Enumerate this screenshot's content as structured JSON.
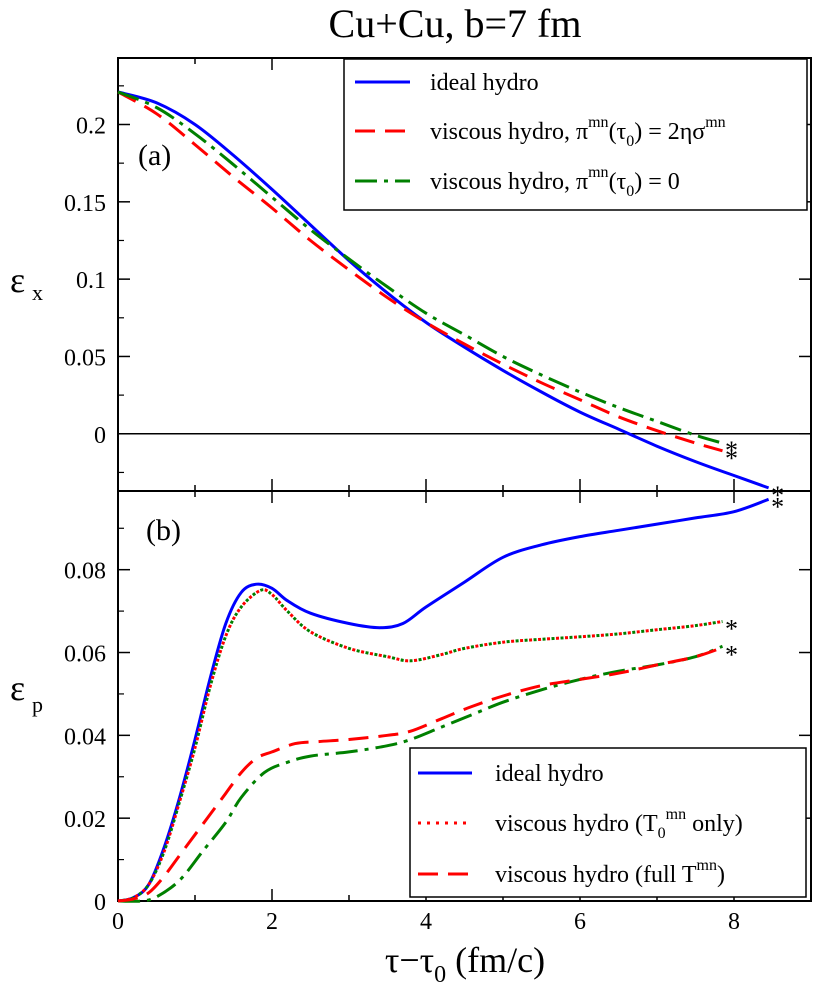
{
  "title": "Cu+Cu, b=7 fm",
  "xlabel_main": "τ−τ",
  "xlabel_sub": "0",
  "xlabel_tail": " (fm/c)",
  "x_ticks": [
    "0",
    "2",
    "4",
    "6",
    "8"
  ],
  "colors": {
    "ideal": "#0000ff",
    "viscous_a": "#ff0000",
    "viscous_b": "#008000"
  },
  "chart_data": [
    {
      "type": "line",
      "panel_label": "(a)",
      "ylabel_main": "ε",
      "ylabel_sub": "x",
      "xlim": [
        0,
        9
      ],
      "ylim": [
        -0.037,
        0.243
      ],
      "y_tick_labels": [
        "0",
        "0.05",
        "0.1",
        "0.15",
        "0.2"
      ],
      "y_tick_values": [
        0,
        0.05,
        0.1,
        0.15,
        0.2
      ],
      "zero_line": true,
      "legend": {
        "ideal": "ideal hydro",
        "red_pre": "viscous hydro, π",
        "red_sup1": "mn",
        "red_mid": "(τ",
        "red_sub": "0",
        "red_post": ") = 2ησ",
        "red_sup2": "mn",
        "green_pre": "viscous hydro, π",
        "green_sup": "mn",
        "green_mid": "(τ",
        "green_sub": "0",
        "green_post": ") = 0"
      },
      "end_marker": "*",
      "series": [
        {
          "name": "ideal hydro",
          "color_key": "ideal",
          "dash": "",
          "end_star": true,
          "points": [
            [
              0,
              0.221
            ],
            [
              0.5,
              0.214
            ],
            [
              1,
              0.2
            ],
            [
              1.5,
              0.18
            ],
            [
              2,
              0.158
            ],
            [
              2.5,
              0.135
            ],
            [
              3,
              0.112
            ],
            [
              3.5,
              0.091
            ],
            [
              4,
              0.072
            ],
            [
              4.5,
              0.056
            ],
            [
              5,
              0.041
            ],
            [
              5.5,
              0.027
            ],
            [
              6,
              0.014
            ],
            [
              6.5,
              0.003
            ],
            [
              7,
              -0.008
            ],
            [
              7.5,
              -0.018
            ],
            [
              8,
              -0.027
            ],
            [
              8.45,
              -0.035
            ]
          ]
        },
        {
          "name": "viscous hydro, π^mn(τ0) = 2ησ^mn",
          "color_key": "viscous_a",
          "dash": "20,10",
          "end_star": true,
          "points": [
            [
              0,
              0.221
            ],
            [
              0.5,
              0.207
            ],
            [
              1,
              0.187
            ],
            [
              1.5,
              0.166
            ],
            [
              2,
              0.146
            ],
            [
              2.5,
              0.125
            ],
            [
              3,
              0.106
            ],
            [
              3.5,
              0.088
            ],
            [
              4,
              0.072
            ],
            [
              4.5,
              0.058
            ],
            [
              5,
              0.045
            ],
            [
              5.5,
              0.033
            ],
            [
              6,
              0.022
            ],
            [
              6.5,
              0.011
            ],
            [
              7,
              0.002
            ],
            [
              7.5,
              -0.006
            ],
            [
              7.85,
              -0.011
            ]
          ]
        },
        {
          "name": "viscous hydro, π^mn(τ0) = 0",
          "color_key": "viscous_b",
          "dash": "22,7,4,7",
          "end_star": true,
          "points": [
            [
              0,
              0.221
            ],
            [
              0.5,
              0.211
            ],
            [
              1,
              0.194
            ],
            [
              1.5,
              0.174
            ],
            [
              2,
              0.153
            ],
            [
              2.5,
              0.132
            ],
            [
              3,
              0.113
            ],
            [
              3.5,
              0.095
            ],
            [
              4,
              0.078
            ],
            [
              4.5,
              0.064
            ],
            [
              5,
              0.05
            ],
            [
              5.5,
              0.038
            ],
            [
              6,
              0.027
            ],
            [
              6.5,
              0.017
            ],
            [
              7,
              0.008
            ],
            [
              7.5,
              -0.001
            ],
            [
              7.85,
              -0.006
            ]
          ]
        }
      ]
    },
    {
      "type": "line",
      "panel_label": "(b)",
      "ylabel_main": "ε",
      "ylabel_sub": "p",
      "xlim": [
        0,
        9
      ],
      "ylim": [
        0,
        0.099
      ],
      "y_tick_labels": [
        "0",
        "0.02",
        "0.04",
        "0.06",
        "0.08"
      ],
      "y_tick_values": [
        0,
        0.02,
        0.04,
        0.06,
        0.08
      ],
      "zero_line": false,
      "legend": {
        "ideal": "ideal hydro",
        "dot_pre": "viscous hydro (T",
        "dot_sub": "0",
        "dot_sup": "mn",
        "dot_post": " only)",
        "dash_pre": "viscous hydro (full T",
        "dash_sup": "mn",
        "dash_post": ")"
      },
      "end_marker": "*",
      "series": [
        {
          "name": "ideal hydro",
          "color_key": "ideal",
          "dash": "",
          "end_star": true,
          "points": [
            [
              0,
              0
            ],
            [
              0.2,
              0.0008
            ],
            [
              0.4,
              0.004
            ],
            [
              0.6,
              0.013
            ],
            [
              0.8,
              0.025
            ],
            [
              1,
              0.039
            ],
            [
              1.2,
              0.054
            ],
            [
              1.4,
              0.067
            ],
            [
              1.6,
              0.0745
            ],
            [
              1.8,
              0.0765
            ],
            [
              2,
              0.0755
            ],
            [
              2.2,
              0.0725
            ],
            [
              2.5,
              0.0695
            ],
            [
              3,
              0.067
            ],
            [
              3.4,
              0.066
            ],
            [
              3.7,
              0.067
            ],
            [
              4,
              0.071
            ],
            [
              4.5,
              0.077
            ],
            [
              5,
              0.083
            ],
            [
              5.5,
              0.086
            ],
            [
              6,
              0.088
            ],
            [
              6.5,
              0.0895
            ],
            [
              7,
              0.091
            ],
            [
              7.5,
              0.0925
            ],
            [
              8,
              0.094
            ],
            [
              8.45,
              0.097
            ]
          ]
        },
        {
          "name": "viscous hydro (T0^mn only)",
          "color_key": "viscous_a",
          "dash": "3,6",
          "end_star": true,
          "points": [
            [
              0,
              0
            ],
            [
              0.2,
              0.0008
            ],
            [
              0.4,
              0.004
            ],
            [
              0.6,
              0.012
            ],
            [
              0.8,
              0.024
            ],
            [
              1,
              0.037
            ],
            [
              1.2,
              0.052
            ],
            [
              1.4,
              0.064
            ],
            [
              1.6,
              0.071
            ],
            [
              1.85,
              0.075
            ],
            [
              2,
              0.074
            ],
            [
              2.2,
              0.07
            ],
            [
              2.5,
              0.065
            ],
            [
              3,
              0.061
            ],
            [
              3.5,
              0.059
            ],
            [
              3.8,
              0.058
            ],
            [
              4.2,
              0.0595
            ],
            [
              4.5,
              0.061
            ],
            [
              5,
              0.0625
            ],
            [
              5.5,
              0.0632
            ],
            [
              6,
              0.0638
            ],
            [
              6.5,
              0.0645
            ],
            [
              7,
              0.0655
            ],
            [
              7.5,
              0.0665
            ],
            [
              7.85,
              0.0675
            ]
          ]
        },
        {
          "name": "viscous hydro (T0^mn only) overlay",
          "color_key": "viscous_b",
          "dash": "3,6",
          "dashoffset": 4.5,
          "end_star": false,
          "points": [
            [
              0,
              0
            ],
            [
              0.2,
              0.0008
            ],
            [
              0.4,
              0.004
            ],
            [
              0.6,
              0.012
            ],
            [
              0.8,
              0.024
            ],
            [
              1,
              0.037
            ],
            [
              1.2,
              0.052
            ],
            [
              1.4,
              0.064
            ],
            [
              1.6,
              0.071
            ],
            [
              1.85,
              0.075
            ],
            [
              2,
              0.074
            ],
            [
              2.2,
              0.07
            ],
            [
              2.5,
              0.065
            ],
            [
              3,
              0.061
            ],
            [
              3.5,
              0.059
            ],
            [
              3.8,
              0.058
            ],
            [
              4.2,
              0.0595
            ],
            [
              4.5,
              0.061
            ],
            [
              5,
              0.0625
            ],
            [
              5.5,
              0.0632
            ],
            [
              6,
              0.0638
            ],
            [
              6.5,
              0.0645
            ],
            [
              7,
              0.0655
            ],
            [
              7.5,
              0.0665
            ],
            [
              7.85,
              0.0675
            ]
          ]
        },
        {
          "name": "viscous hydro (full T^mn) dash-dot",
          "color_key": "viscous_b",
          "dash": "22,7,4,7",
          "end_star": false,
          "points": [
            [
              0,
              0
            ],
            [
              0.3,
              0
            ],
            [
              0.5,
              0.001
            ],
            [
              0.8,
              0.005
            ],
            [
              1.1,
              0.012
            ],
            [
              1.4,
              0.019
            ],
            [
              1.6,
              0.025
            ],
            [
              1.9,
              0.031
            ],
            [
              2.2,
              0.0335
            ],
            [
              2.5,
              0.035
            ],
            [
              3,
              0.036
            ],
            [
              3.5,
              0.0375
            ],
            [
              3.8,
              0.039
            ],
            [
              4.2,
              0.042
            ],
            [
              4.6,
              0.045
            ],
            [
              5,
              0.048
            ],
            [
              5.5,
              0.051
            ],
            [
              6,
              0.0535
            ],
            [
              6.5,
              0.0555
            ],
            [
              7,
              0.057
            ],
            [
              7.5,
              0.059
            ],
            [
              7.85,
              0.0615
            ]
          ]
        },
        {
          "name": "viscous hydro (full T^mn)",
          "color_key": "viscous_a",
          "dash": "20,10",
          "end_star": true,
          "points": [
            [
              0,
              0
            ],
            [
              0.2,
              0.0005
            ],
            [
              0.4,
              0.002
            ],
            [
              0.6,
              0.006
            ],
            [
              0.8,
              0.011
            ],
            [
              1,
              0.016
            ],
            [
              1.2,
              0.021
            ],
            [
              1.4,
              0.026
            ],
            [
              1.6,
              0.031
            ],
            [
              1.8,
              0.0345
            ],
            [
              2,
              0.036
            ],
            [
              2.3,
              0.038
            ],
            [
              2.6,
              0.0385
            ],
            [
              3,
              0.039
            ],
            [
              3.5,
              0.04
            ],
            [
              3.8,
              0.041
            ],
            [
              4.2,
              0.044
            ],
            [
              4.6,
              0.047
            ],
            [
              5,
              0.0495
            ],
            [
              5.5,
              0.052
            ],
            [
              6,
              0.0535
            ],
            [
              6.5,
              0.055
            ],
            [
              7,
              0.057
            ],
            [
              7.5,
              0.059
            ],
            [
              7.85,
              0.0612
            ]
          ]
        }
      ]
    }
  ]
}
